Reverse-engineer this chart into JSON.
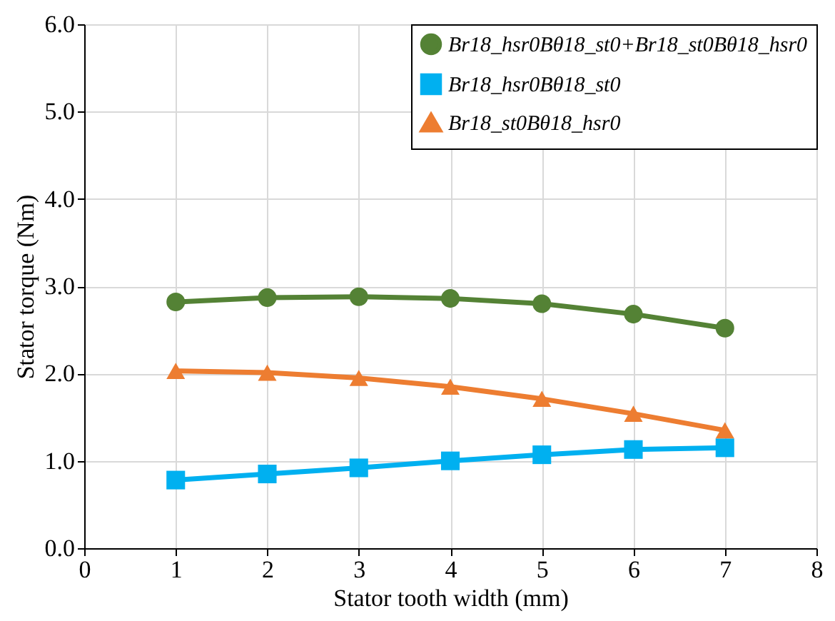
{
  "chart_data": {
    "type": "line",
    "xlabel": "Stator tooth width (mm)",
    "ylabel": "Stator torque (Nm)",
    "x": [
      1,
      2,
      3,
      4,
      5,
      6,
      7
    ],
    "series": [
      {
        "name": "Br18_hsr0Bθ18_st0+Br18_st0Bθ18_hsr0",
        "color": "#548235",
        "marker": "circle",
        "values": [
          2.82,
          2.87,
          2.88,
          2.86,
          2.8,
          2.68,
          2.52
        ]
      },
      {
        "name": "Br18_hsr0Bθ18_st0",
        "color": "#00b0f0",
        "marker": "square",
        "values": [
          0.78,
          0.85,
          0.92,
          1.0,
          1.07,
          1.13,
          1.15
        ]
      },
      {
        "name": "Br18_st0Bθ18_hsr0",
        "color": "#ed7d31",
        "marker": "triangle",
        "values": [
          2.03,
          2.01,
          1.95,
          1.85,
          1.71,
          1.54,
          1.35
        ]
      }
    ],
    "xlim": [
      0,
      8
    ],
    "xticks": [
      0,
      1,
      2,
      3,
      4,
      5,
      6,
      7,
      8
    ],
    "ylim": [
      0,
      6
    ],
    "yticks": [
      {
        "value": 0,
        "label": "0.0"
      },
      {
        "value": 1,
        "label": "1.0"
      },
      {
        "value": 2,
        "label": "2.0"
      },
      {
        "value": 3,
        "label": "3.0"
      },
      {
        "value": 4,
        "label": "4.0"
      },
      {
        "value": 5,
        "label": "5.0"
      },
      {
        "value": 6,
        "label": "6.0"
      }
    ],
    "grid": true,
    "legend": "top right",
    "line_style": "solid"
  }
}
